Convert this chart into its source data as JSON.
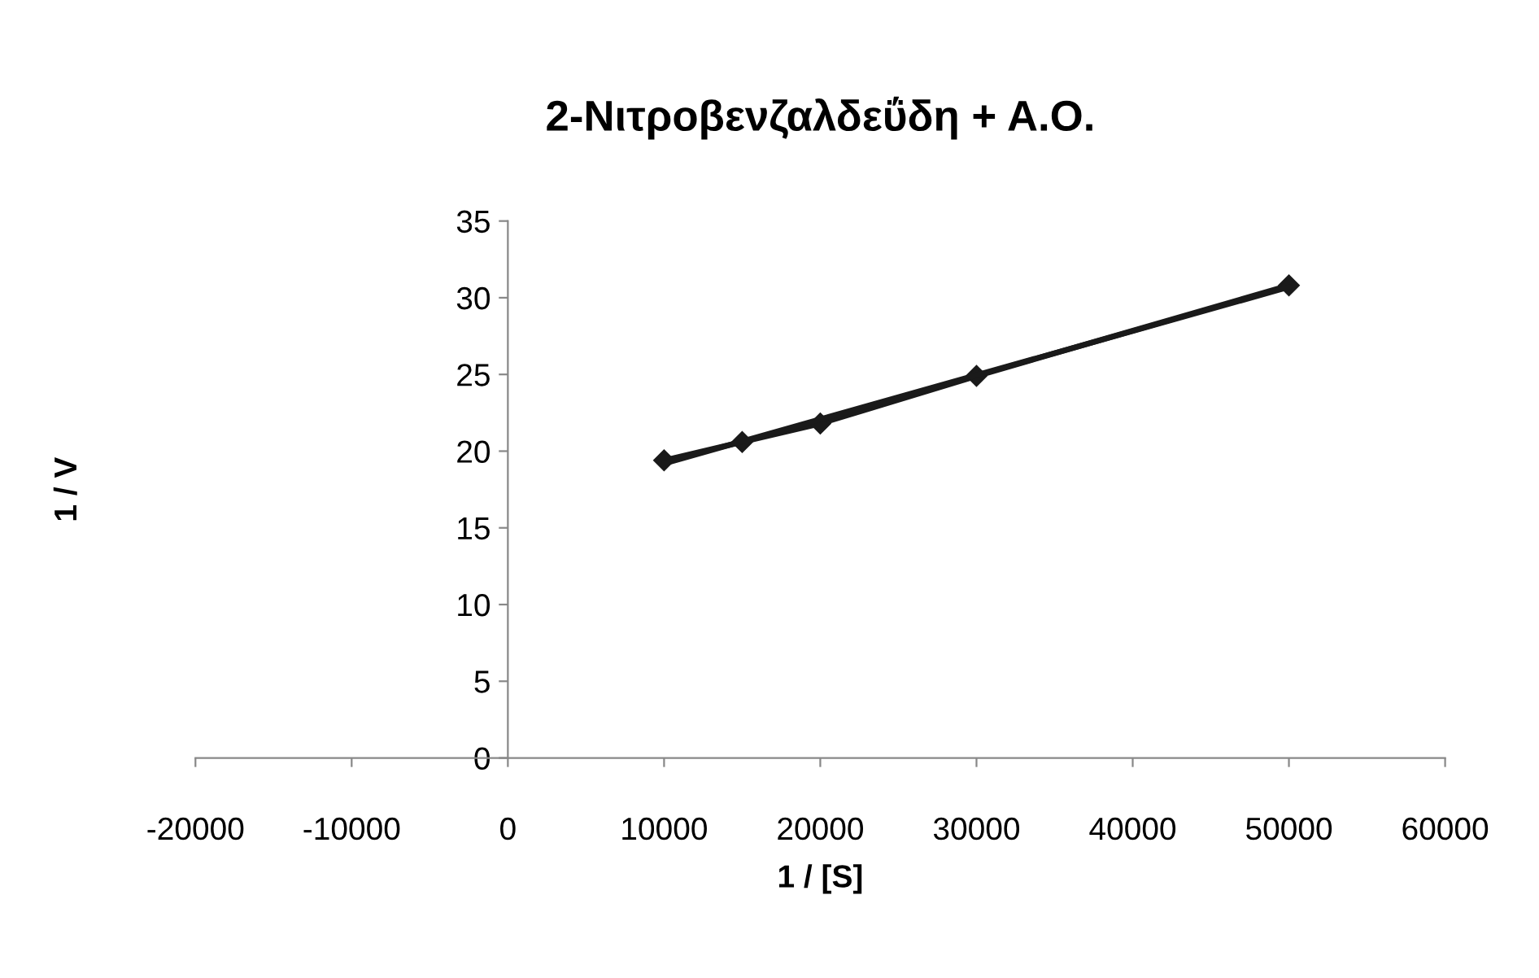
{
  "chart_data": {
    "type": "line",
    "title": "2-Νιτροβενζαλδεΰδη + Α.Ο.",
    "xlabel": "1 / [S]",
    "ylabel": "1 / V",
    "x": [
      10000,
      15000,
      20000,
      30000,
      50000
    ],
    "series": [
      {
        "color": "#1a1a1a",
        "values": [
          19.4,
          20.6,
          21.8,
          24.9,
          30.8
        ],
        "marker": "diamond"
      },
      {
        "type": "line",
        "color": "#1a1a1a",
        "x": [
          10000,
          50000
        ],
        "values": [
          19.2,
          30.7
        ],
        "marker": "none"
      }
    ],
    "xlim": [
      -20000,
      60000
    ],
    "xticks": [
      -20000,
      -10000,
      0,
      10000,
      20000,
      30000,
      40000,
      50000,
      60000
    ],
    "ylim": [
      0,
      35
    ],
    "yticks": [
      0,
      5,
      10,
      15,
      20,
      25,
      30,
      35
    ],
    "grid": false
  }
}
